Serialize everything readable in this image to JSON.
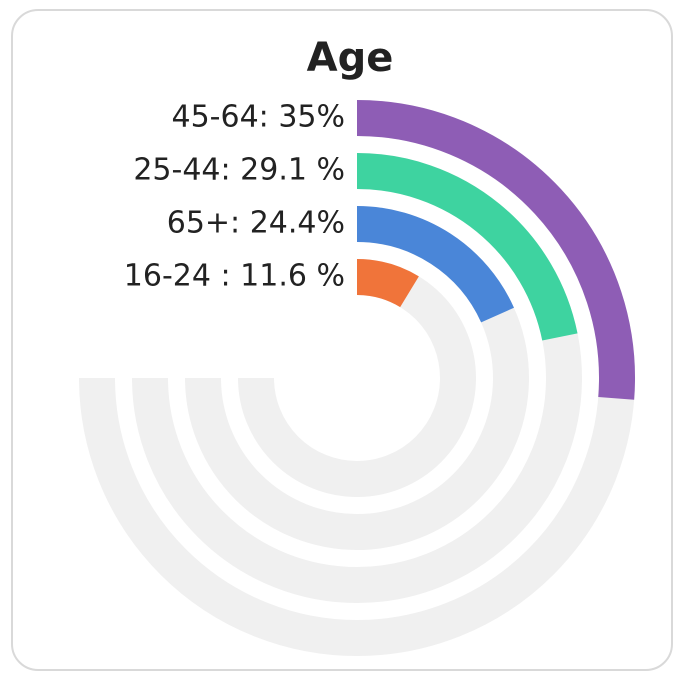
{
  "chart_data": {
    "type": "radial-bar",
    "title": "Age",
    "categories": [
      "45-64",
      "25-44",
      "65+",
      "16-24"
    ],
    "values": [
      35,
      29.1,
      24.4,
      11.6
    ],
    "value_labels": [
      "45-64: 35%",
      "25-44: 29.1 %",
      "65+: 24.4%",
      "16-24 : 11.6 %"
    ],
    "colors": [
      "#8e5db5",
      "#3ed3a0",
      "#4a86d8",
      "#f0743a"
    ],
    "rlim": [
      0,
      100
    ]
  }
}
